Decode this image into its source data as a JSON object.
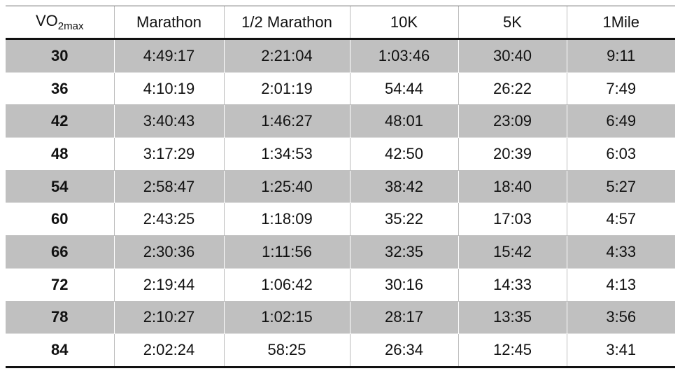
{
  "table": {
    "header": [
      {
        "base": "VO",
        "sub": "2max"
      },
      "Marathon",
      "1/2 Marathon",
      "10K",
      "5K",
      "1Mile"
    ],
    "rows": [
      [
        30,
        "4:49:17",
        "2:21:04",
        "1:03:46",
        "30:40",
        "9:11"
      ],
      [
        36,
        "4:10:19",
        "2:01:19",
        "54:44",
        "26:22",
        "7:49"
      ],
      [
        42,
        "3:40:43",
        "1:46:27",
        "48:01",
        "23:09",
        "6:49"
      ],
      [
        48,
        "3:17:29",
        "1:34:53",
        "42:50",
        "20:39",
        "6:03"
      ],
      [
        54,
        "2:58:47",
        "1:25:40",
        "38:42",
        "18:40",
        "5:27"
      ],
      [
        60,
        "2:43:25",
        "1:18:09",
        "35:22",
        "17:03",
        "4:57"
      ],
      [
        66,
        "2:30:36",
        "1:11:56",
        "32:35",
        "15:42",
        "4:33"
      ],
      [
        72,
        "2:19:44",
        "1:06:42",
        "30:16",
        "14:33",
        "4:13"
      ],
      [
        78,
        "2:10:27",
        "1:02:15",
        "28:17",
        "13:35",
        "3:56"
      ],
      [
        84,
        "2:02:24",
        "58:25",
        "26:34",
        "12:45",
        "3:41"
      ]
    ]
  }
}
